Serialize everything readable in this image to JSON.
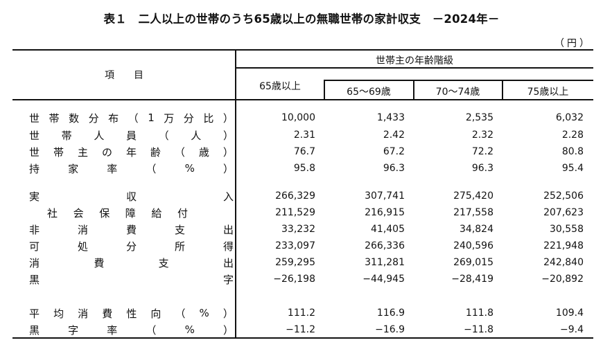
{
  "title": "表１　二人以上の世帯のうち65歳以上の無職世帯の家計収支　－2024年－",
  "unit": "（円）",
  "header": {
    "item": "項　　目",
    "group": "世帯主の年齢階級",
    "columns": [
      "65歳以上",
      "65～69歳",
      "70～74歳",
      "75歳以上"
    ]
  },
  "rows": [
    {
      "label_chars": [
        "世",
        "帯",
        "数",
        "分",
        "布",
        "（",
        "1",
        "万",
        "分",
        "比",
        "）"
      ],
      "indent": false,
      "values": [
        "10,000",
        "1,433",
        "2,535",
        "6,032"
      ]
    },
    {
      "label_chars": [
        "世",
        "帯",
        "人",
        "員",
        "（",
        "人",
        "）"
      ],
      "indent": false,
      "values": [
        "2.31",
        "2.42",
        "2.32",
        "2.28"
      ]
    },
    {
      "label_chars": [
        "世",
        "帯",
        "主",
        "の",
        "年",
        "齢",
        "（",
        "歳",
        "）"
      ],
      "indent": false,
      "values": [
        "76.7",
        "67.2",
        "72.2",
        "80.8"
      ]
    },
    {
      "label_chars": [
        "持",
        "家",
        "率",
        "（",
        "%",
        "）"
      ],
      "indent": false,
      "values": [
        "95.8",
        "96.3",
        "96.3",
        "95.4"
      ]
    },
    {
      "label_chars": [
        "実",
        "収",
        "入"
      ],
      "indent": false,
      "values": [
        "266,329",
        "307,741",
        "275,420",
        "252,506"
      ]
    },
    {
      "label_chars": [
        "社",
        "会",
        "保",
        "障",
        "給",
        "付"
      ],
      "indent": true,
      "values": [
        "211,529",
        "216,915",
        "217,558",
        "207,623"
      ]
    },
    {
      "label_chars": [
        "非",
        "消",
        "費",
        "支",
        "出"
      ],
      "indent": false,
      "values": [
        "33,232",
        "41,405",
        "34,824",
        "30,558"
      ]
    },
    {
      "label_chars": [
        "可",
        "処",
        "分",
        "所",
        "得"
      ],
      "indent": false,
      "values": [
        "233,097",
        "266,336",
        "240,596",
        "221,948"
      ]
    },
    {
      "label_chars": [
        "消",
        "費",
        "支",
        "出"
      ],
      "indent": false,
      "values": [
        "259,295",
        "311,281",
        "269,015",
        "242,840"
      ]
    },
    {
      "label_chars": [
        "黒",
        "字"
      ],
      "indent": false,
      "values": [
        "−26,198",
        "−44,945",
        "−28,419",
        "−20,892"
      ]
    },
    {
      "label_chars": [
        "平",
        "均",
        "消",
        "費",
        "性",
        "向",
        "（",
        "%",
        "）"
      ],
      "indent": false,
      "values": [
        "111.2",
        "116.9",
        "111.8",
        "109.4"
      ]
    },
    {
      "label_chars": [
        "黒",
        "字",
        "率",
        "（",
        "%",
        "）"
      ],
      "indent": false,
      "values": [
        "−11.2",
        "−16.9",
        "−11.8",
        "−9.4"
      ]
    }
  ],
  "row_labels": [
    "世帯数分布（1万分比）",
    "世帯人員（人）",
    "世帯主の年齢（歳）",
    "持家率（%）",
    "実収入",
    "社会保障給付",
    "非消費支出",
    "可処分所得",
    "消費支出",
    "黒字",
    "平均消費性向（%）",
    "黒字率（%）"
  ]
}
